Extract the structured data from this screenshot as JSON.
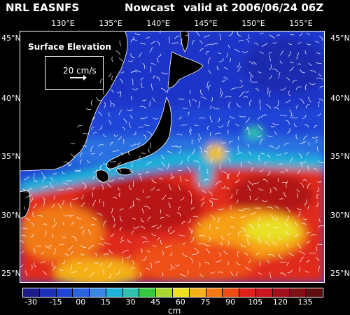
{
  "header": {
    "left": "NRL EASNFS",
    "middle": "Nowcast",
    "right": "valid at 2006/06/24 06Z"
  },
  "longitudes": [
    "130°E",
    "135°E",
    "140°E",
    "145°E",
    "150°E",
    "155°E"
  ],
  "latitudes": [
    "45°N",
    "40°N",
    "35°N",
    "30°N",
    "25°N"
  ],
  "legend": {
    "title": "Surface Elevation",
    "speed": "20 cm/s"
  },
  "colorbar": {
    "unit": "cm",
    "ticks": [
      "-30",
      "-15",
      "00",
      "15",
      "30",
      "45",
      "60",
      "75",
      "90",
      "105",
      "120",
      "135"
    ],
    "colors": [
      "#1b1b8c",
      "#1e2fb8",
      "#1f45d6",
      "#2a63e0",
      "#3a86e6",
      "#1fb2d8",
      "#30c0b0",
      "#35c840",
      "#a8d830",
      "#f0e020",
      "#f6b018",
      "#f27a14",
      "#ee4c14",
      "#e0201a",
      "#c8141c",
      "#a0101a",
      "#801014",
      "#600c10"
    ]
  }
}
